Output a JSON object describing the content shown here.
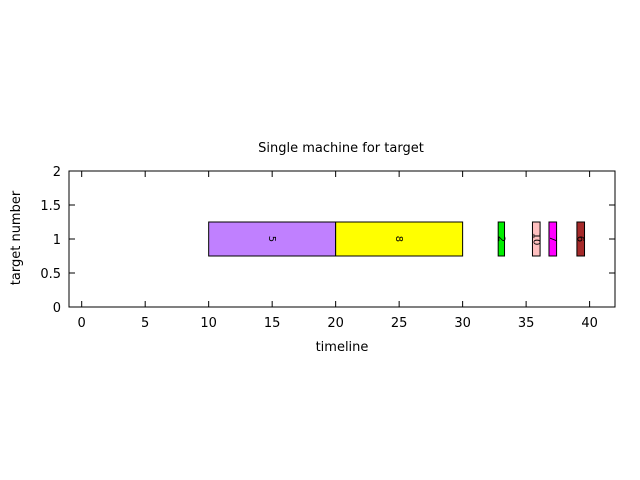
{
  "chart_data": {
    "type": "bar",
    "orientation": "horizontal-gantt",
    "title": "Single machine for target",
    "xlabel": "timeline",
    "ylabel": "target number",
    "xlim": [
      -1,
      42
    ],
    "ylim": [
      0,
      2
    ],
    "x_ticks": [
      "0",
      "5",
      "10",
      "15",
      "20",
      "25",
      "30",
      "35",
      "40"
    ],
    "y_ticks": [
      "0",
      "0.5",
      "1",
      "1.5",
      "2"
    ],
    "grid": false,
    "bar_height": 0.5,
    "tasks": [
      {
        "label": "5",
        "start": 10.0,
        "end": 20.0,
        "y": 1,
        "color": "#c080ff"
      },
      {
        "label": "8",
        "start": 20.0,
        "end": 30.0,
        "y": 1,
        "color": "#ffff00"
      },
      {
        "label": "2",
        "start": 32.8,
        "end": 33.3,
        "y": 1,
        "color": "#00ee00"
      },
      {
        "label": "10",
        "start": 35.5,
        "end": 36.1,
        "y": 1,
        "color": "#ffc0c0"
      },
      {
        "label": "7",
        "start": 36.8,
        "end": 37.4,
        "y": 1,
        "color": "#ff00ff"
      },
      {
        "label": "6",
        "start": 39.0,
        "end": 39.6,
        "y": 1,
        "color": "#a52a2a"
      }
    ]
  }
}
